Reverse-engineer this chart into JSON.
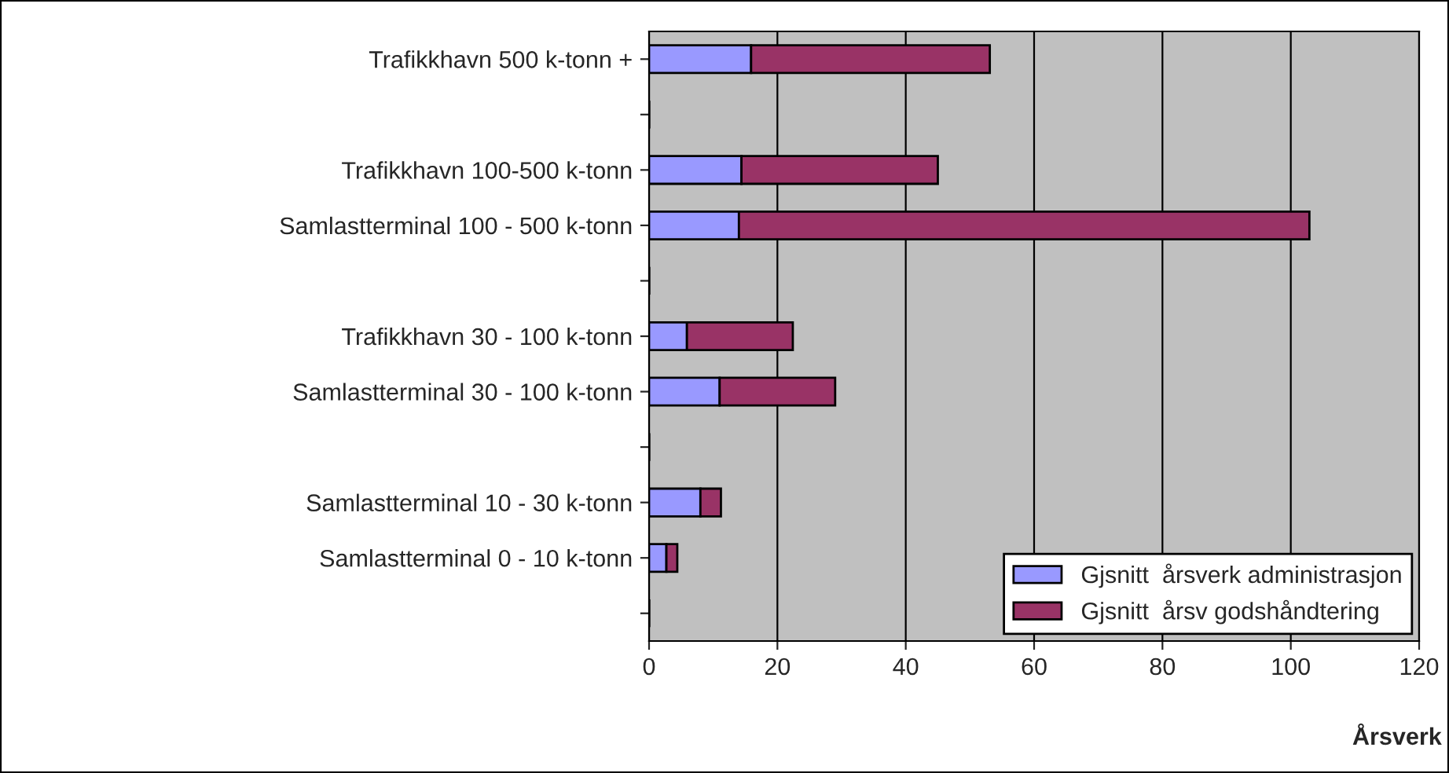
{
  "chart_data": {
    "type": "bar",
    "orientation": "horizontal",
    "stacked": true,
    "categories": [
      "Trafikkhavn 500 k-tonn +",
      null,
      "Trafikkhavn 100-500 k-tonn",
      "Samlastterminal 100 - 500 k-tonn",
      null,
      "Trafikkhavn 30 - 100 k-tonn",
      "Samlastterminal 30 - 100 k-tonn",
      null,
      "Samlastterminal 10 - 30 k-tonn",
      "Samlastterminal 0 - 10 k-tonn",
      null
    ],
    "series": [
      {
        "name": "Gjsnitt  årsverk administrasjon",
        "color": "#9999ff",
        "values": [
          15.9,
          null,
          14.4,
          14,
          null,
          5.9,
          11,
          null,
          8,
          2.7,
          null
        ]
      },
      {
        "name": "Gjsnitt  årsv godshåndtering",
        "color": "#993366",
        "values": [
          37.2,
          null,
          30.6,
          88.9,
          null,
          16.5,
          18,
          null,
          3.2,
          1.7,
          null
        ]
      }
    ],
    "xlabel": "Årsverk",
    "xlim": [
      0,
      120
    ],
    "xticks": [
      0,
      20,
      40,
      60,
      80,
      100,
      120
    ],
    "grid": "x",
    "legend": "bottom right"
  }
}
